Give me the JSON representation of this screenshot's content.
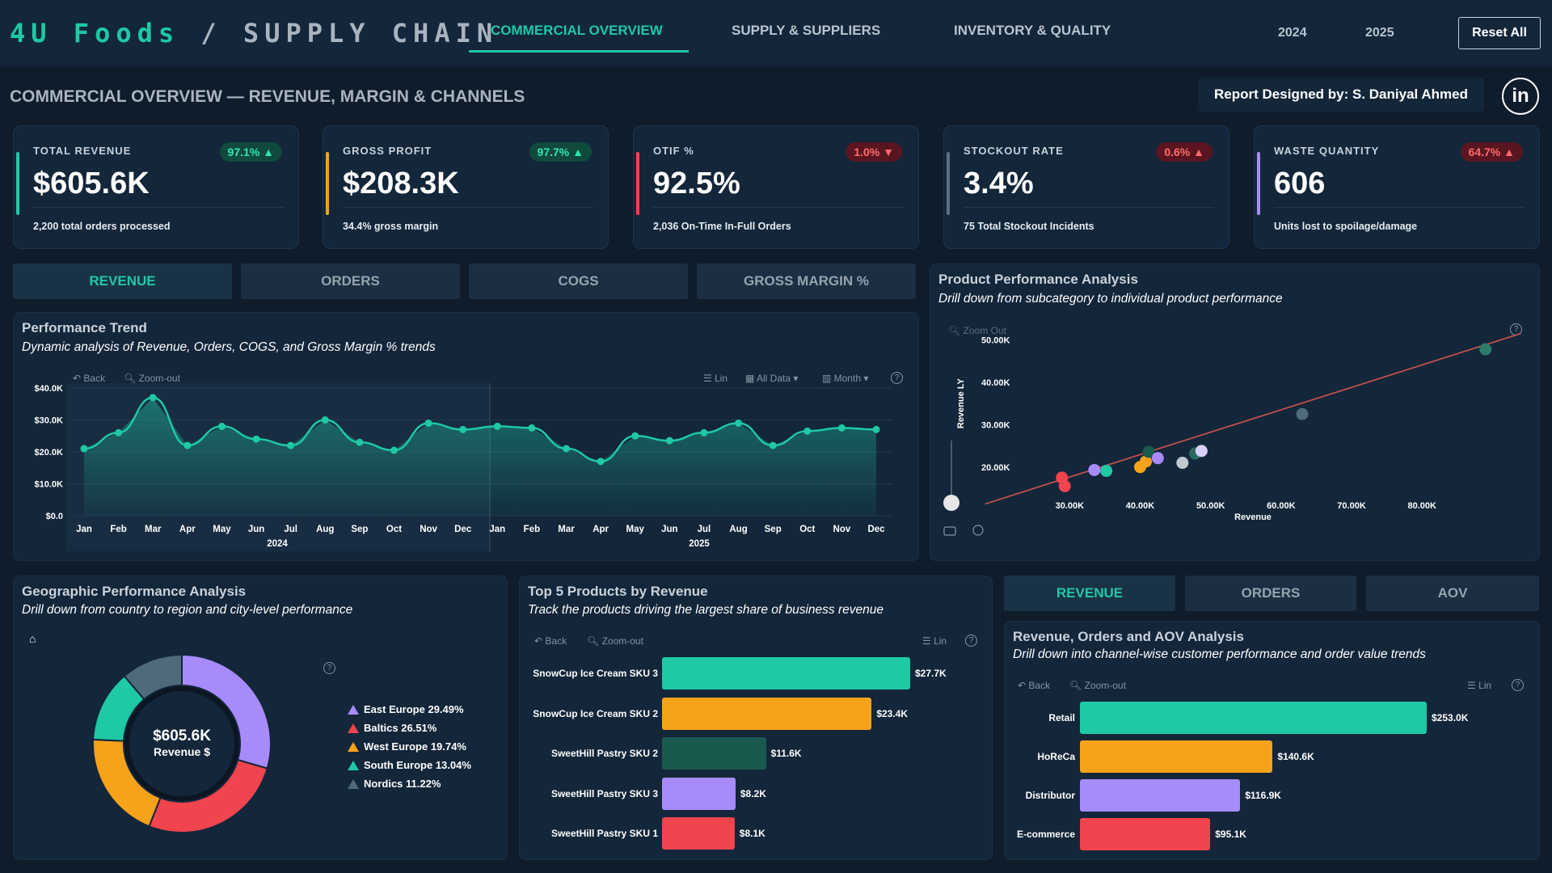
{
  "header": {
    "brand_part1": "4U Foods",
    "brand_sep": " / ",
    "brand_part2": "SUPPLY CHAIN",
    "tabs": [
      {
        "label": "COMMERCIAL OVERVIEW",
        "active": true
      },
      {
        "label": "SUPPLY & SUPPLIERS",
        "active": false
      },
      {
        "label": "INVENTORY & QUALITY",
        "active": false
      }
    ],
    "years": [
      "2024",
      "2025"
    ],
    "reset_label": "Reset All"
  },
  "page_title": "COMMERCIAL OVERVIEW — REVENUE, MARGIN & CHANNELS",
  "designed_by": "Report Designed by: S. Daniyal Ahmed",
  "linkedin_label": "in",
  "kpis": [
    {
      "label": "TOTAL REVENUE",
      "badge": "97.1% ▲",
      "status": "good",
      "value": "$605.6K",
      "sub": "2,200 total orders processed",
      "accent": "#1ec9a4"
    },
    {
      "label": "GROSS PROFIT",
      "badge": "97.7% ▲",
      "status": "good",
      "value": "$208.3K",
      "sub": "34.4% gross margin",
      "accent": "#f7a21b"
    },
    {
      "label": "OTIF %",
      "badge": "1.0% ▼",
      "status": "bad",
      "value": "92.5%",
      "sub": "2,036 On-Time In-Full Orders",
      "accent": "#f0444f"
    },
    {
      "label": "STOCKOUT RATE",
      "badge": "0.6% ▲",
      "status": "bad",
      "value": "3.4%",
      "sub": "75 Total Stockout Incidents",
      "accent": "#5b6f82"
    },
    {
      "label": "WASTE QUANTITY",
      "badge": "64.7% ▲",
      "status": "bad",
      "value": "606",
      "sub": "Units lost to spoilage/damage",
      "accent": "#a78bfa"
    }
  ],
  "metric_tabs": [
    {
      "label": "REVENUE",
      "active": true
    },
    {
      "label": "ORDERS",
      "active": false
    },
    {
      "label": "COGS",
      "active": false
    },
    {
      "label": "GROSS MARGIN %",
      "active": false
    }
  ],
  "trend": {
    "title": "Performance Trend",
    "subtitle": "Dynamic analysis of Revenue, Orders, COGS, and Gross Margin % trends",
    "tools": {
      "back": "Back",
      "zoom": "Zoom-out",
      "lin": "Lin",
      "all": "All Data ▾",
      "month": "Month ▾"
    },
    "help": "?"
  },
  "scatter": {
    "title": "Product Performance Analysis",
    "subtitle": "Drill down from subcategory to individual product performance",
    "zoom": "Zoom Out",
    "help": "?"
  },
  "geo": {
    "title": "Geographic Performance Analysis",
    "subtitle": "Drill down from country to region and city-level performance",
    "center_value": "$605.6K",
    "center_label": "Revenue $",
    "home_icon": "⌂",
    "help": "?"
  },
  "top5": {
    "title": "Top 5 Products by Revenue",
    "subtitle": "Track the products driving the largest share of business revenue",
    "tools": {
      "back": "Back",
      "zoom": "Zoom-out",
      "lin": "Lin"
    },
    "help": "?"
  },
  "channel_tabs": [
    {
      "label": "REVENUE",
      "active": true
    },
    {
      "label": "ORDERS",
      "active": false
    },
    {
      "label": "AOV",
      "active": false
    }
  ],
  "channel": {
    "title": "Revenue, Orders and AOV Analysis",
    "subtitle": "Drill down into channel-wise customer performance and order value trends",
    "tools": {
      "back": "Back",
      "zoom": "Zoom-out",
      "lin": "Lin"
    },
    "help": "?"
  },
  "chart_data": [
    {
      "type": "area",
      "title": "Performance Trend",
      "ylim": [
        0,
        40
      ],
      "y_ticks": [
        "$0.0",
        "$10.0K",
        "$20.0K",
        "$30.0K",
        "$40.0K"
      ],
      "y_tick_values": [
        0,
        10,
        20,
        30,
        40
      ],
      "categories": [
        "Jan",
        "Feb",
        "Mar",
        "Apr",
        "May",
        "Jun",
        "Jul",
        "Aug",
        "Sep",
        "Oct",
        "Nov",
        "Dec",
        "Jan",
        "Feb",
        "Mar",
        "Apr",
        "May",
        "Jun",
        "Jul",
        "Aug",
        "Sep",
        "Oct",
        "Nov",
        "Dec"
      ],
      "groups": [
        "2024",
        "2025"
      ],
      "values": [
        21,
        26,
        37,
        22,
        28,
        24,
        22,
        30,
        23,
        20.5,
        29,
        27,
        28,
        27.5,
        21,
        17,
        25,
        23.5,
        26,
        29,
        22,
        26.5,
        27.5,
        27
      ],
      "grid": true,
      "color": "#1ec9a4"
    },
    {
      "type": "scatter",
      "title": "Product Performance Analysis",
      "xlabel": "Revenue",
      "ylabel": "Revenue LY",
      "x_ticks": [
        "30.00K",
        "40.00K",
        "50.00K",
        "60.00K",
        "70.00K",
        "80.00K"
      ],
      "x_tick_values": [
        30,
        40,
        50,
        60,
        70,
        80
      ],
      "y_ticks": [
        "20.00K",
        "30.00K",
        "40.00K",
        "50.00K"
      ],
      "y_tick_values": [
        20,
        30,
        40,
        50
      ],
      "xlim": [
        17,
        95
      ],
      "ylim": [
        11,
        52
      ],
      "points": [
        {
          "x": 28.9,
          "y": 17.5,
          "color": "#f0444f"
        },
        {
          "x": 29.3,
          "y": 15.5,
          "color": "#f0444f"
        },
        {
          "x": 33.5,
          "y": 19.3,
          "color": "#a78bfa"
        },
        {
          "x": 35.2,
          "y": 19.1,
          "color": "#1ec9a4"
        },
        {
          "x": 40.0,
          "y": 20.0,
          "color": "#f7a21b"
        },
        {
          "x": 40.8,
          "y": 21.3,
          "color": "#f7a21b"
        },
        {
          "x": 41.2,
          "y": 23.6,
          "color": "#1a5a4e"
        },
        {
          "x": 42.5,
          "y": 22.1,
          "color": "#a78bfa"
        },
        {
          "x": 46.0,
          "y": 21.0,
          "color": "#c0c8d0"
        },
        {
          "x": 47.8,
          "y": 23.2,
          "color": "#2a6a5e"
        },
        {
          "x": 48.7,
          "y": 23.8,
          "color": "#d8d0f8"
        },
        {
          "x": 63.0,
          "y": 32.5,
          "color": "#4f6a7a"
        },
        {
          "x": 89.0,
          "y": 47.8,
          "color": "#2d7a6a"
        }
      ],
      "trendline": {
        "from": [
          18,
          11.3
        ],
        "to": [
          94,
          51.5
        ],
        "color": "#c0504d"
      }
    },
    {
      "type": "pie",
      "title": "Geographic Performance Analysis",
      "categories": [
        "East Europe",
        "Baltics",
        "West Europe",
        "South Europe",
        "Nordics"
      ],
      "values": [
        29.49,
        26.51,
        19.74,
        13.04,
        11.22
      ],
      "labels": [
        "East Europe 29.49%",
        "Baltics 26.51%",
        "West Europe 19.74%",
        "South Europe 13.04%",
        "Nordics 11.22%"
      ],
      "colors": [
        "#a78bfa",
        "#f0444f",
        "#f7a21b",
        "#1ec9a4",
        "#4f6a7a"
      ],
      "legend": "right"
    },
    {
      "type": "bar",
      "orientation": "horizontal",
      "title": "Top 5 Products by Revenue",
      "categories": [
        "SnowCup Ice Cream SKU 3",
        "SnowCup Ice Cream SKU 2",
        "SweetHill Pastry SKU 2",
        "SweetHill Pastry SKU 3",
        "SweetHill Pastry SKU 1"
      ],
      "values": [
        27.7,
        23.4,
        11.6,
        8.2,
        8.1
      ],
      "value_labels": [
        "$27.7K",
        "$23.4K",
        "$11.6K",
        "$8.2K",
        "$8.1K"
      ],
      "colors": [
        "#1ec9a4",
        "#f7a21b",
        "#1a5a4e",
        "#a78bfa",
        "#f0444f"
      ]
    },
    {
      "type": "bar",
      "orientation": "horizontal",
      "title": "Revenue, Orders and AOV Analysis",
      "categories": [
        "Retail",
        "HoReCa",
        "Distributor",
        "E-commerce"
      ],
      "values": [
        253.0,
        140.6,
        116.9,
        95.1
      ],
      "value_labels": [
        "$253.0K",
        "$140.6K",
        "$116.9K",
        "$95.1K"
      ],
      "colors": [
        "#1ec9a4",
        "#f7a21b",
        "#a78bfa",
        "#f0444f"
      ]
    }
  ]
}
